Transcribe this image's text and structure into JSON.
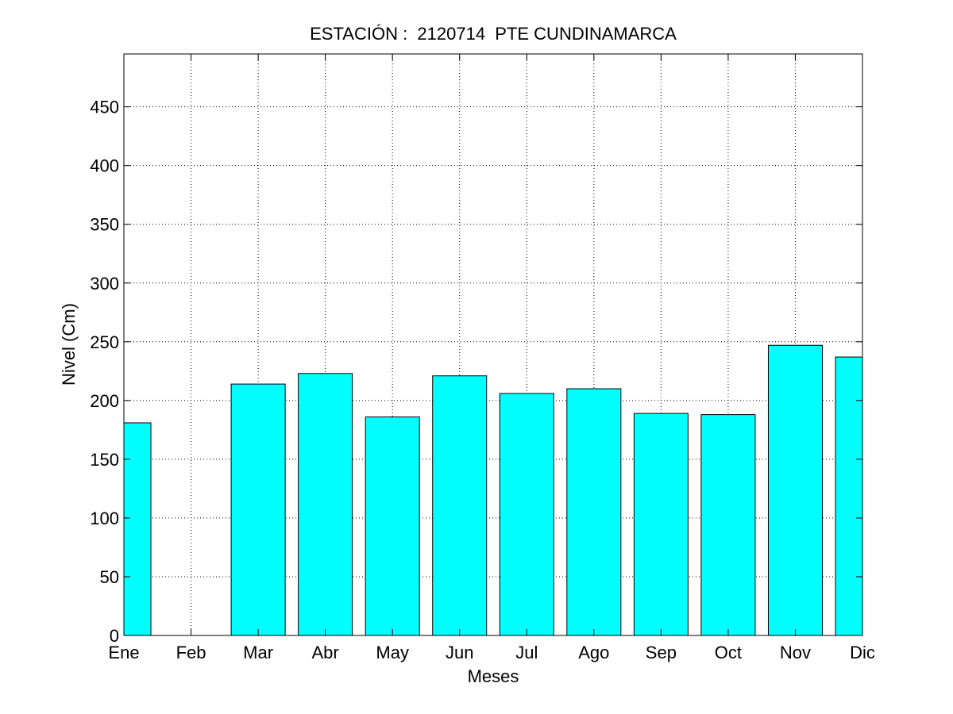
{
  "chart_data": {
    "type": "bar",
    "title": "ESTACIÓN :  2120714  PTE CUNDINAMARCA",
    "xlabel": "Meses",
    "ylabel": "Nivel (Cm)",
    "categories": [
      "Ene",
      "Feb",
      "Mar",
      "Abr",
      "May",
      "Jun",
      "Jul",
      "Ago",
      "Sep",
      "Oct",
      "Nov",
      "Dic"
    ],
    "values": [
      181,
      null,
      214,
      223,
      186,
      221,
      206,
      210,
      189,
      188,
      247,
      237
    ],
    "yticks": [
      0,
      50,
      100,
      150,
      200,
      250,
      300,
      350,
      400,
      450
    ],
    "ylim": [
      0,
      495
    ],
    "xlim": [
      1,
      12
    ],
    "grid": true,
    "bar_color": "#00ffff",
    "bar_edge_color": "#000000"
  }
}
